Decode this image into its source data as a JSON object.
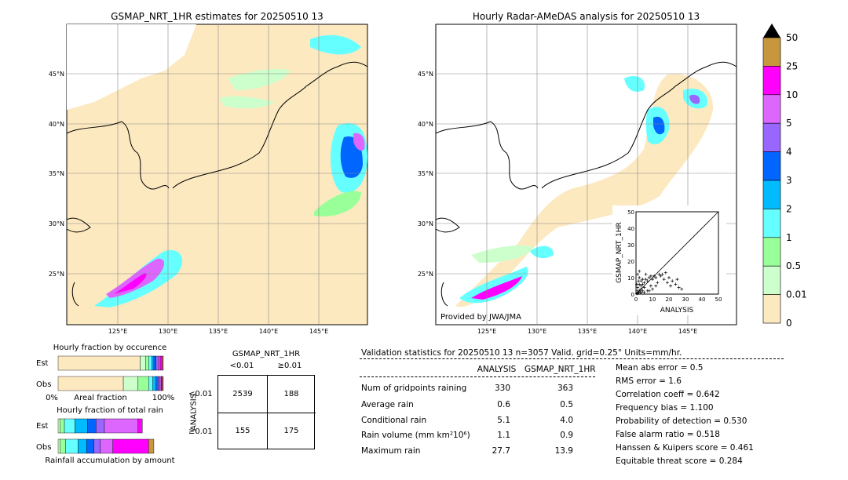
{
  "colors": {
    "land_bg": "#fde9c0",
    "sea_bg": "#ffffff",
    "coast": "#000000",
    "grid": "#888888"
  },
  "left_map": {
    "title": "GSMAP_NRT_1HR estimates for 20250510 13",
    "lat_ticks": [
      "45°N",
      "40°N",
      "35°N",
      "30°N",
      "25°N"
    ],
    "lon_ticks": [
      "125°E",
      "130°E",
      "135°E",
      "140°E",
      "145°E"
    ]
  },
  "right_map": {
    "title": "Hourly Radar-AMeDAS analysis for 20250510 13",
    "lat_ticks": [
      "45°N",
      "40°N",
      "35°N",
      "30°N",
      "25°N"
    ],
    "lon_ticks": [
      "125°E",
      "130°E",
      "135°E",
      "140°E",
      "145°E"
    ],
    "credit": "Provided by JWA/JMA"
  },
  "colorbar": {
    "labels": [
      "50",
      "25",
      "10",
      "5",
      "4",
      "3",
      "2",
      "1",
      "0.5",
      "0.01",
      "0"
    ],
    "colors": [
      "#c8963c",
      "#ff00ff",
      "#dd66ff",
      "#9966ff",
      "#0066ff",
      "#00bbff",
      "#66ffff",
      "#99ff99",
      "#ccffcc",
      "#fde9c0"
    ]
  },
  "chart_data": [
    {
      "type": "scatter",
      "xlabel": "ANALYSIS",
      "ylabel": "GSMAP_NRT_1HR",
      "xlim": [
        0,
        50
      ],
      "ylim": [
        0,
        50
      ],
      "x_ticks": [
        "0",
        "10",
        "20",
        "30",
        "40",
        "50"
      ],
      "y_ticks": [
        "0",
        "10",
        "20",
        "30",
        "40",
        "50"
      ],
      "points": [
        [
          0.5,
          0.3
        ],
        [
          1,
          0.5
        ],
        [
          1.5,
          1
        ],
        [
          2,
          2
        ],
        [
          2.5,
          1
        ],
        [
          3,
          3
        ],
        [
          4,
          2
        ],
        [
          1,
          4
        ],
        [
          2,
          6
        ],
        [
          3,
          5
        ],
        [
          1.5,
          8
        ],
        [
          2,
          10
        ],
        [
          1,
          12
        ],
        [
          3,
          8
        ],
        [
          4,
          6
        ],
        [
          5,
          7
        ],
        [
          5,
          4
        ],
        [
          6,
          9
        ],
        [
          7,
          8
        ],
        [
          8,
          10
        ],
        [
          9,
          11
        ],
        [
          10,
          9
        ],
        [
          11,
          11
        ],
        [
          12,
          10
        ],
        [
          14,
          12
        ],
        [
          15,
          11
        ],
        [
          16,
          12
        ],
        [
          18,
          13
        ],
        [
          20,
          10
        ],
        [
          22,
          8
        ],
        [
          24,
          6
        ],
        [
          26,
          4
        ],
        [
          27.7,
          3
        ],
        [
          8,
          2
        ],
        [
          10,
          3
        ],
        [
          12,
          5
        ],
        [
          6,
          12
        ],
        [
          4,
          9
        ],
        [
          2,
          13.9
        ],
        [
          0.5,
          6
        ],
        [
          1,
          2
        ],
        [
          3,
          1
        ],
        [
          5,
          1
        ],
        [
          7,
          2
        ],
        [
          9,
          5
        ],
        [
          13,
          7
        ],
        [
          17,
          9
        ],
        [
          19,
          7
        ],
        [
          21,
          5
        ],
        [
          25,
          9
        ]
      ]
    },
    {
      "type": "bar",
      "title": "Hourly fraction by occurence",
      "categories": [
        "Est",
        "Obs"
      ],
      "xlabel": "Areal fraction",
      "x_ticks": [
        "0%",
        "100%"
      ],
      "series": [
        {
          "values": [
            0.78,
            0.62
          ]
        },
        {
          "values": [
            0.05,
            0.14
          ]
        },
        {
          "values": [
            0.03,
            0.1
          ]
        },
        {
          "values": [
            0.03,
            0.04
          ]
        },
        {
          "values": [
            0.02,
            0.03
          ]
        },
        {
          "values": [
            0.02,
            0.02
          ]
        },
        {
          "values": [
            0.02,
            0.02
          ]
        },
        {
          "values": [
            0.02,
            0.01
          ]
        },
        {
          "values": [
            0.02,
            0.01
          ]
        },
        {
          "values": [
            0.01,
            0.01
          ]
        }
      ]
    },
    {
      "type": "bar",
      "title": "Hourly fraction of total rain",
      "categories": [
        "Est",
        "Obs"
      ],
      "xlabel": "Rainfall accumulation by amount",
      "series": [
        {
          "values": [
            0.02,
            0.02
          ]
        },
        {
          "values": [
            0.04,
            0.05
          ]
        },
        {
          "values": [
            0.1,
            0.12
          ]
        },
        {
          "values": [
            0.12,
            0.08
          ]
        },
        {
          "values": [
            0.08,
            0.07
          ]
        },
        {
          "values": [
            0.08,
            0.06
          ]
        },
        {
          "values": [
            0.32,
            0.12
          ]
        },
        {
          "values": [
            0.04,
            0.34
          ]
        },
        {
          "values": [
            0.0,
            0.05
          ]
        }
      ]
    }
  ],
  "contingency": {
    "title": "GSMAP_NRT_1HR",
    "col_labels": [
      "<0.01",
      "≥0.01"
    ],
    "row_axis": "ANALYSIS",
    "row_labels": [
      "<0.01",
      "≥0.01"
    ],
    "cells": [
      [
        "2539",
        "188"
      ],
      [
        "155",
        "175"
      ]
    ]
  },
  "validation": {
    "header": "Validation statistics for 20250510 13  n=3057 Valid. grid=0.25° Units=mm/hr.",
    "col_analysis": "ANALYSIS",
    "col_gsmap": "GSMAP_NRT_1HR",
    "rows": [
      {
        "label": "Num of gridpoints raining",
        "analysis": "330",
        "gsmap": "363"
      },
      {
        "label": "Average rain",
        "analysis": "0.6",
        "gsmap": "0.5"
      },
      {
        "label": "Conditional rain",
        "analysis": "5.1",
        "gsmap": "4.0"
      },
      {
        "label": "Rain volume (mm km²10⁶)",
        "analysis": "1.1",
        "gsmap": "0.9"
      },
      {
        "label": "Maximum rain",
        "analysis": "27.7",
        "gsmap": "13.9"
      }
    ],
    "scores": [
      "Mean abs error =    0.5",
      "RMS error =    1.6",
      "Correlation coeff =  0.642",
      "Frequency bias =  1.100",
      "Probability of detection =  0.530",
      "False alarm ratio =  0.518",
      "Hanssen & Kuipers score =  0.461",
      "Equitable threat score =  0.284"
    ]
  }
}
